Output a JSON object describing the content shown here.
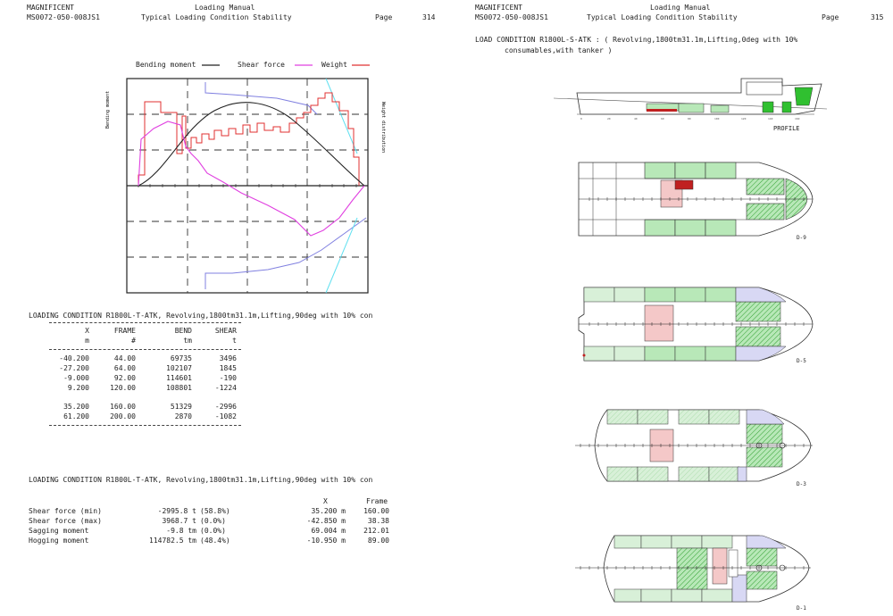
{
  "left_page": {
    "company": "MAGNIFICENT",
    "doc_id": "MS0072-050-008JS1",
    "manual": "Loading Manual",
    "subtitle": "Typical Loading Condition Stability",
    "page_label": "Page",
    "page_no": "314",
    "legend": {
      "bending": "Bending moment",
      "shear": "Shear force",
      "weight": "Weight"
    },
    "axis_left": "Bending moment",
    "axis_right": "Weight distribution",
    "condition_line_1": "LOADING CONDITION R1800L-T-ATK, Revolving,1800tm31.1m,Lifting,90deg with 10% con",
    "table1": {
      "headers": [
        "X",
        "FRAME",
        "BEND",
        "SHEAR"
      ],
      "units": [
        "m",
        "#",
        "tm",
        "t"
      ],
      "rows": [
        [
          "-40.200",
          "44.00",
          "69735",
          "3496"
        ],
        [
          "-27.200",
          "64.00",
          "102107",
          "1845"
        ],
        [
          "-9.000",
          "92.00",
          "114601",
          "-190"
        ],
        [
          "9.200",
          "120.00",
          "108801",
          "-1224"
        ],
        [
          "35.200",
          "160.00",
          "51329",
          "-2996"
        ],
        [
          "61.200",
          "200.00",
          "2870",
          "-1082"
        ]
      ]
    },
    "condition_line_2": "LOADING CONDITION R1800L-T-ATK, Revolving,1800tm31.1m,Lifting,90deg with 10% con",
    "table2": {
      "col_x": "X",
      "col_frame": "Frame",
      "rows": [
        {
          "label": "Shear force (min)",
          "value": "-2995.8 t",
          "pct": "(58.8%)",
          "x": "35.200 m",
          "frame": "160.00"
        },
        {
          "label": "Shear force (max)",
          "value": "3968.7 t",
          "pct": "(0.0%)",
          "x": "-42.850 m",
          "frame": "38.38"
        },
        {
          "label": "Sagging moment",
          "value": "-9.8 tm",
          "pct": "(0.0%)",
          "x": "69.004 m",
          "frame": "212.01"
        },
        {
          "label": "Hogging moment",
          "value": "114782.5 tm",
          "pct": "(48.4%)",
          "x": "-10.950 m",
          "frame": "89.00"
        }
      ]
    }
  },
  "right_page": {
    "company": "MAGNIFICENT",
    "doc_id": "MS0072-050-008JS1",
    "manual": "Loading Manual",
    "subtitle": "Typical Loading Condition Stability",
    "page_label": "Page",
    "page_no": "315",
    "condition_line_1": "LOAD CONDITION R1800L-S-ATK : ( Revolving,1800tm31.1m,Lifting,0deg with 10%",
    "condition_line_2": "consumables,with tanker )",
    "profile_label": "PROFILE",
    "deck_labels": [
      "D-9",
      "D-5",
      "D-3",
      "D-1"
    ]
  },
  "colors": {
    "bending": "#222222",
    "shear": "#e040e0",
    "weight": "#e03030",
    "envelope_blue": "#8080e0",
    "envelope_cyan": "#60e0f0",
    "tank_green": "#b8e8b8",
    "tank_green_dark": "#30c030",
    "tank_red": "#c02020",
    "tank_pink": "#f4c8c8",
    "tank_lavender": "#d8d8f4"
  }
}
